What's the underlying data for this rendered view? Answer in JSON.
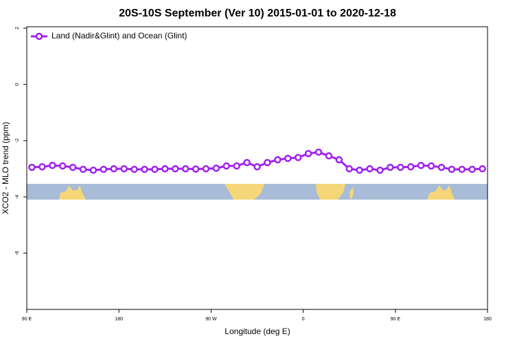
{
  "chart_data": {
    "type": "line",
    "title": "20S-10S September (Ver 10)   2015-01-01 to 2020-12-18",
    "x_label": "Longitude (deg E)",
    "y_label": "XCO2 - MLO trend (ppm)",
    "x": [
      95,
      105,
      115,
      125,
      135,
      145,
      155,
      165,
      175,
      185,
      195,
      205,
      215,
      225,
      235,
      245,
      255,
      265,
      275,
      285,
      295,
      305,
      315,
      325,
      335,
      345,
      355,
      365,
      375,
      385,
      395,
      405,
      415,
      425,
      435,
      445,
      455,
      465,
      475,
      485,
      495,
      505,
      515,
      525,
      535
    ],
    "series": [
      {
        "name": "Land (Nadir&Glint) and Ocean (Glint)",
        "color": "#a020f0",
        "values": [
          -2.95,
          -2.93,
          -2.88,
          -2.9,
          -2.95,
          -3.02,
          -3.05,
          -3.02,
          -3.0,
          -3.0,
          -3.02,
          -3.02,
          -3.02,
          -3.0,
          -3.0,
          -3.0,
          -3.01,
          -3.0,
          -2.98,
          -2.9,
          -2.9,
          -2.78,
          -2.93,
          -2.78,
          -2.68,
          -2.63,
          -2.6,
          -2.46,
          -2.41,
          -2.54,
          -2.68,
          -3.0,
          -3.05,
          -3.0,
          -3.05,
          -2.95,
          -2.95,
          -2.93,
          -2.88,
          -2.9,
          -2.95,
          -3.02,
          -3.02,
          -3.02,
          -3.0
        ]
      }
    ],
    "xlim": [
      90,
      540
    ],
    "xticks": [
      {
        "value": 90,
        "label": "90 E"
      },
      180,
      {
        "value": 270,
        "label": "90 W"
      },
      {
        "value": 360,
        "label": "0"
      },
      {
        "value": 450,
        "label": "90 E"
      },
      {
        "value": 540,
        "label": "180"
      }
    ],
    "ylim": [
      -8,
      2.05
    ],
    "yticks": [
      -6,
      -4,
      -2,
      0,
      2
    ],
    "legend": "top-left"
  }
}
